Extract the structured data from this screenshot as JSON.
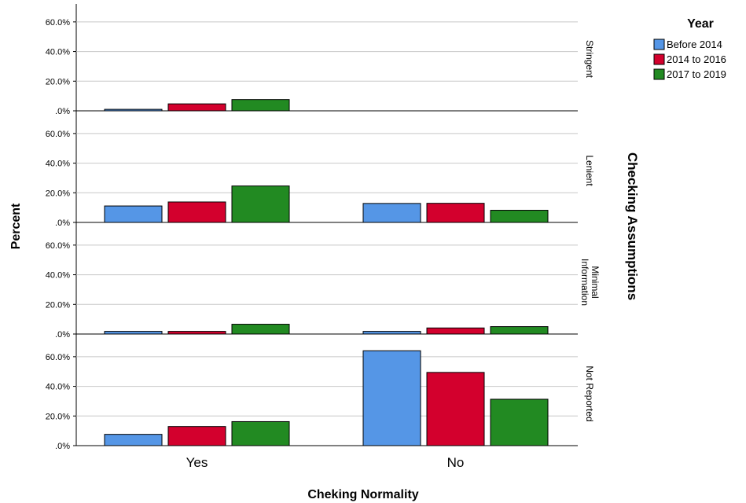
{
  "chart_data": {
    "type": "bar",
    "xlabel": "Cheking Normality",
    "ylabel": "Percent",
    "panel_axis_title": "Checking Assumptions",
    "categories": [
      "Yes",
      "No"
    ],
    "ylim": [
      0,
      70
    ],
    "yticks": [
      ".0%",
      "20.0%",
      "40.0%",
      "60.0%"
    ],
    "grid": true,
    "legend": {
      "title": "Year",
      "position": "top-right",
      "entries": [
        {
          "name": "Before 2014",
          "color": "#5596e6"
        },
        {
          "name": "2014 to 2016",
          "color": "#d3002d"
        },
        {
          "name": "2017 to 2019",
          "color": "#228a22"
        }
      ]
    },
    "panels": [
      {
        "label": "Stringent",
        "series": [
          {
            "name": "Before 2014",
            "values": [
              1.0,
              null
            ]
          },
          {
            "name": "2014 to 2016",
            "values": [
              4.7,
              null
            ]
          },
          {
            "name": "2017 to 2019",
            "values": [
              7.6,
              null
            ]
          }
        ]
      },
      {
        "label": "Lenient",
        "series": [
          {
            "name": "Before 2014",
            "values": [
              11.1,
              12.8
            ]
          },
          {
            "name": "2014 to 2016",
            "values": [
              13.8,
              12.9
            ]
          },
          {
            "name": "2017 to 2019",
            "values": [
              24.6,
              8.2
            ]
          }
        ]
      },
      {
        "label": "Minimal Information",
        "label_lines": [
          "Minimal",
          "Information"
        ],
        "series": [
          {
            "name": "Before 2014",
            "values": [
              1.8,
              1.8
            ]
          },
          {
            "name": "2014 to 2016",
            "values": [
              1.8,
              4.1
            ]
          },
          {
            "name": "2017 to 2019",
            "values": [
              6.6,
              5.0
            ]
          }
        ]
      },
      {
        "label": "Not Reported",
        "series": [
          {
            "name": "Before 2014",
            "values": [
              7.6,
              64.0
            ]
          },
          {
            "name": "2014 to 2016",
            "values": [
              12.9,
              49.4
            ]
          },
          {
            "name": "2017 to 2019",
            "values": [
              16.2,
              31.3
            ]
          }
        ]
      }
    ]
  }
}
